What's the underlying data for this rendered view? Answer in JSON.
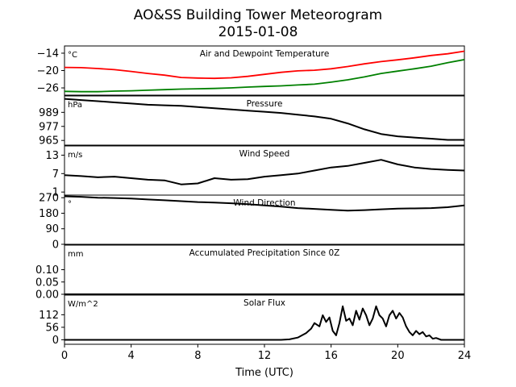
{
  "figure": {
    "title_line1": "AO&SS Building Tower Meteorogram",
    "title_line2": "2015-01-08",
    "xlabel": "Time (UTC)",
    "x_ticks": [
      "0",
      "4",
      "8",
      "12",
      "16",
      "20",
      "24"
    ],
    "xlim": [
      0,
      24
    ]
  },
  "chart_data": [
    {
      "type": "line",
      "title": "Air and Dewpoint Temperature",
      "unit_label": "°C",
      "ylim": [
        -28.5,
        -11.5
      ],
      "yticks": [
        -14,
        -20,
        -26
      ],
      "ytick_labels": [
        "−14",
        "−20",
        "−26"
      ],
      "series": [
        {
          "color": "#ff0000",
          "x": [
            0,
            1,
            2,
            3,
            4,
            5,
            6,
            7,
            8,
            9,
            10,
            11,
            12,
            13,
            14,
            15,
            16,
            17,
            18,
            19,
            20,
            21,
            22,
            23,
            24
          ],
          "y": [
            -18.9,
            -19.0,
            -19.3,
            -19.7,
            -20.3,
            -21.0,
            -21.6,
            -22.4,
            -22.6,
            -22.7,
            -22.5,
            -22.0,
            -21.3,
            -20.6,
            -20.1,
            -19.9,
            -19.4,
            -18.6,
            -17.7,
            -16.9,
            -16.3,
            -15.6,
            -14.8,
            -14.2,
            -13.3
          ]
        },
        {
          "color": "#008000",
          "x": [
            0,
            1,
            2,
            3,
            4,
            5,
            6,
            7,
            8,
            9,
            10,
            11,
            12,
            13,
            14,
            15,
            16,
            17,
            18,
            19,
            20,
            21,
            22,
            23,
            24
          ],
          "y": [
            -27.2,
            -27.3,
            -27.3,
            -27.1,
            -27.0,
            -26.8,
            -26.6,
            -26.4,
            -26.3,
            -26.2,
            -26.0,
            -25.7,
            -25.5,
            -25.3,
            -25.0,
            -24.7,
            -24.0,
            -23.2,
            -22.2,
            -21.0,
            -20.2,
            -19.4,
            -18.5,
            -17.3,
            -16.2
          ]
        }
      ]
    },
    {
      "type": "line",
      "title": "Pressure",
      "unit_label": "hPa",
      "ylim": [
        961,
        1003
      ],
      "yticks": [
        989,
        977,
        965
      ],
      "ytick_labels": [
        "989",
        "977",
        "965"
      ],
      "series": [
        {
          "color": "#000000",
          "x": [
            0,
            1,
            2,
            3,
            4,
            5,
            6,
            7,
            8,
            9,
            10,
            11,
            12,
            13,
            14,
            15,
            16,
            17,
            18,
            19,
            20,
            21,
            22,
            23,
            24
          ],
          "y": [
            1000.5,
            999.5,
            998.5,
            997.5,
            996.5,
            995.5,
            995.0,
            994.5,
            993.5,
            992.5,
            991.5,
            990.5,
            989.5,
            988.5,
            987.0,
            985.5,
            983.5,
            979.5,
            974.5,
            970.5,
            968.5,
            967.5,
            966.5,
            965.5,
            965.5
          ]
        }
      ]
    },
    {
      "type": "line",
      "title": "Wind Speed",
      "unit_label": "m/s",
      "ylim": [
        0,
        16
      ],
      "yticks": [
        13,
        7,
        1
      ],
      "ytick_labels": [
        "13",
        "7",
        "1"
      ],
      "series": [
        {
          "color": "#000000",
          "x": [
            0,
            1,
            2,
            3,
            4,
            5,
            6,
            7,
            8,
            9,
            10,
            11,
            12,
            13,
            14,
            15,
            16,
            17,
            18,
            19,
            20,
            21,
            22,
            23,
            24
          ],
          "y": [
            6.5,
            6.2,
            5.8,
            6.0,
            5.5,
            5.0,
            4.8,
            3.5,
            3.8,
            5.5,
            5.0,
            5.2,
            6.0,
            6.5,
            7.0,
            8.0,
            9.0,
            9.5,
            10.5,
            11.5,
            10.0,
            9.0,
            8.5,
            8.2,
            8.0
          ]
        }
      ]
    },
    {
      "type": "line",
      "title": "Wind Direction",
      "unit_label": "°",
      "ylim": [
        0,
        285
      ],
      "yticks": [
        270,
        180,
        90,
        0
      ],
      "ytick_labels": [
        "270",
        "180",
        "90",
        "0"
      ],
      "series": [
        {
          "color": "#000000",
          "x": [
            0,
            1,
            2,
            3,
            4,
            5,
            6,
            7,
            8,
            9,
            10,
            11,
            12,
            13,
            14,
            15,
            16,
            17,
            18,
            19,
            20,
            21,
            22,
            23,
            24
          ],
          "y": [
            278,
            275,
            270,
            268,
            265,
            260,
            255,
            250,
            245,
            242,
            238,
            232,
            225,
            218,
            210,
            205,
            200,
            195,
            198,
            203,
            207,
            208,
            210,
            215,
            225
          ]
        }
      ]
    },
    {
      "type": "line",
      "title": "Accumulated Precipitation Since 0Z",
      "unit_label": "mm",
      "ylim": [
        0,
        0.2
      ],
      "yticks": [
        0.1,
        0.05,
        0.0
      ],
      "ytick_labels": [
        "0.10",
        "0.05",
        "0.00"
      ],
      "series": [
        {
          "color": "#000000",
          "x": [
            0,
            24
          ],
          "y": [
            0,
            0
          ]
        }
      ]
    },
    {
      "type": "line",
      "title": "Solar Flux",
      "unit_label": "W/m^2",
      "ylim": [
        -20,
        200
      ],
      "yticks": [
        112,
        56,
        0
      ],
      "ytick_labels": [
        "112",
        "56",
        "0"
      ],
      "series": [
        {
          "color": "#000000",
          "x": [
            0,
            13,
            13.5,
            14,
            14.5,
            14.8,
            15.0,
            15.3,
            15.5,
            15.7,
            15.9,
            16.1,
            16.3,
            16.5,
            16.7,
            16.9,
            17.1,
            17.3,
            17.5,
            17.7,
            17.9,
            18.1,
            18.3,
            18.5,
            18.7,
            18.9,
            19.1,
            19.3,
            19.5,
            19.7,
            19.9,
            20.1,
            20.3,
            20.5,
            20.7,
            20.9,
            21.1,
            21.3,
            21.5,
            21.7,
            21.9,
            22.1,
            22.3,
            22.6,
            23.0,
            24
          ],
          "y": [
            0,
            0,
            2,
            10,
            30,
            50,
            75,
            60,
            110,
            80,
            100,
            40,
            20,
            75,
            150,
            85,
            95,
            65,
            130,
            90,
            140,
            110,
            65,
            95,
            150,
            110,
            95,
            60,
            110,
            130,
            95,
            120,
            100,
            60,
            35,
            20,
            40,
            25,
            35,
            15,
            20,
            5,
            8,
            0,
            0,
            0
          ]
        }
      ]
    }
  ]
}
